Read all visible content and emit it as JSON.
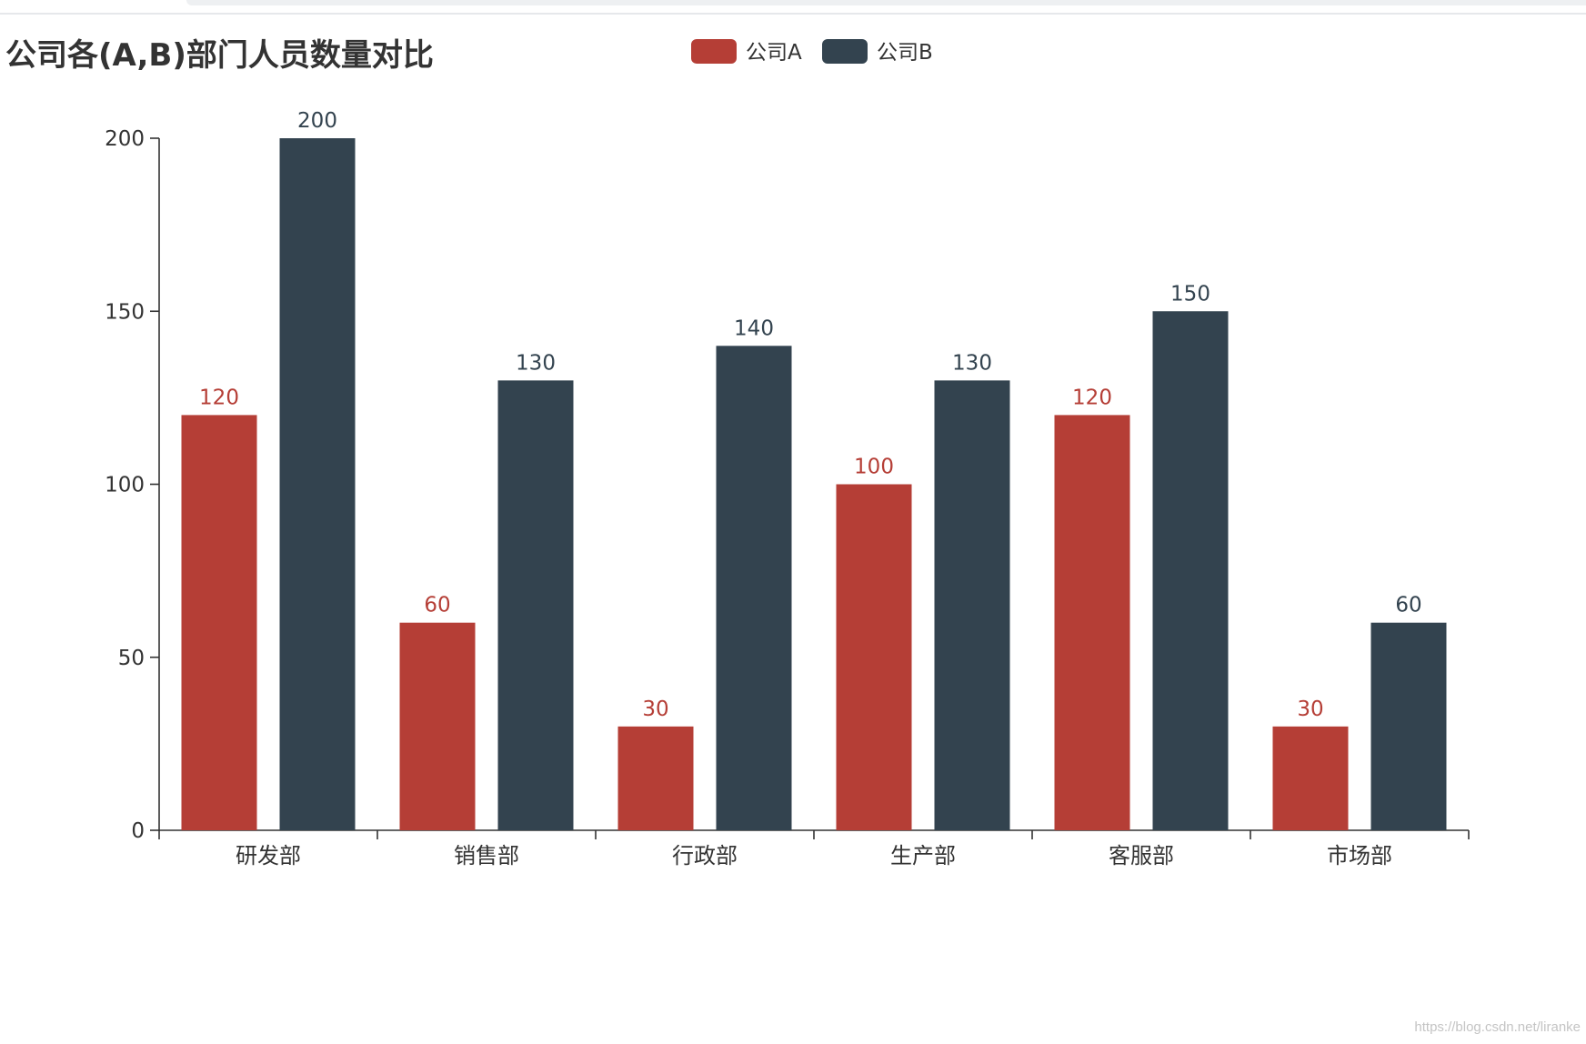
{
  "chart_data": {
    "type": "bar",
    "title": "公司各(A,B)部门人员数量对比",
    "categories": [
      "研发部",
      "销售部",
      "行政部",
      "生产部",
      "客服部",
      "市场部"
    ],
    "series": [
      {
        "name": "公司A",
        "color": "#b53e36",
        "values": [
          120,
          60,
          30,
          100,
          120,
          30
        ]
      },
      {
        "name": "公司B",
        "color": "#33434f",
        "values": [
          200,
          130,
          140,
          130,
          150,
          60
        ]
      }
    ],
    "ylim": [
      0,
      200
    ],
    "yticks": [
      0,
      50,
      100,
      150,
      200
    ],
    "xlabel": "",
    "ylabel": "",
    "grid": false,
    "legend_position": "top-center",
    "data_labels": true
  },
  "watermark": "https://blog.csdn.net/liranke"
}
